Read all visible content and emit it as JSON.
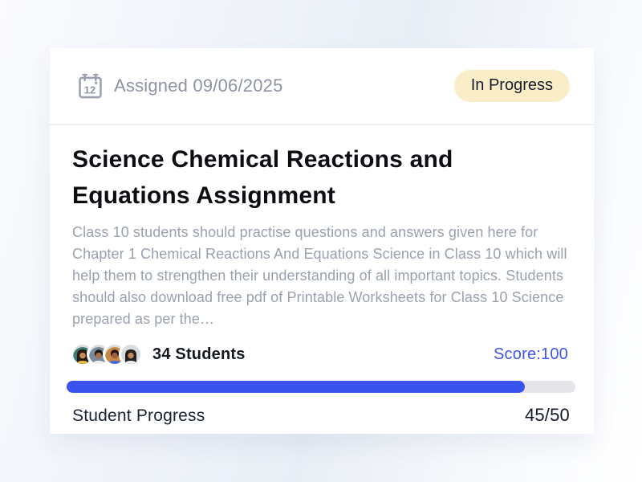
{
  "page": {
    "background": "#edf1f8"
  },
  "card": {
    "header": {
      "assigned_label": "Assigned 09/06/2025",
      "calendar_day": "12",
      "status": {
        "label": "In Progress",
        "bg": "#FAEEC8",
        "color": "#161B2C"
      }
    },
    "title": "Science Chemical Reactions and Equations Assignment",
    "description": "Class 10 students should practise questions and answers given here for Chapter 1 Chemical Reactions And Equations Science in Class 10 which will help them to strengthen their understanding of all important topics. Students should also download free pdf of Printable Worksheets for Class 10 Science prepared as per the…",
    "students": {
      "label": "34 Students",
      "avatars": [
        {
          "name": "student-avatar-1",
          "bg": "#3F7A70",
          "hair": "#241A17",
          "skin": "#C98A5E",
          "shirt": "#E9BD3F",
          "long_hair": true
        },
        {
          "name": "student-avatar-2",
          "bg": "#7A8C9B",
          "hair": "#1C1512",
          "skin": "#A9714B",
          "shirt": "#F2F3F5",
          "long_hair": false
        },
        {
          "name": "student-avatar-3",
          "bg": "#C98648",
          "hair": "#20150F",
          "skin": "#9C6239",
          "shirt": "#3E6FD8",
          "long_hair": false
        },
        {
          "name": "student-avatar-4",
          "bg": "#D8DCE0",
          "hair": "#23201F",
          "skin": "#C08A62",
          "shirt": "#EDEFF2",
          "long_hair": true
        }
      ]
    },
    "score": {
      "label": "Score:100",
      "color": "#3F53EC"
    },
    "progress": {
      "label": "Student Progress",
      "value": "45/50",
      "percent": 90,
      "fill": "#3B53EE",
      "track": "#E5E5E9"
    }
  }
}
